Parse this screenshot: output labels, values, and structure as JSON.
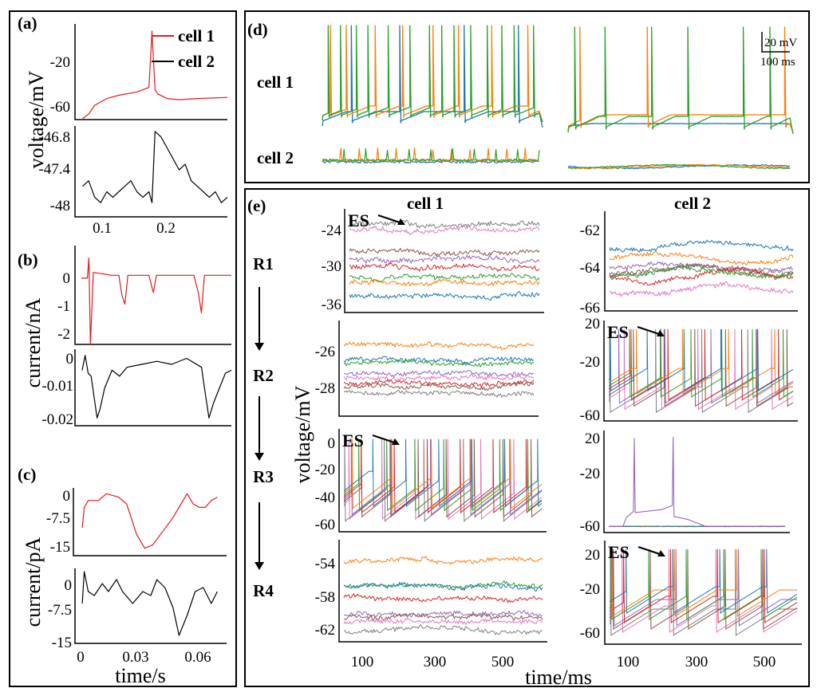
{
  "figure": {
    "panel_labels": [
      "(a)",
      "(b)",
      "(c)",
      "(d)",
      "(e)"
    ],
    "series_colors": {
      "cell1": "#e41a1c",
      "cell2": "#000000",
      "blue": "#1f77b4",
      "orange": "#ff7f0e",
      "green": "#2ca02c",
      "red": "#d62728",
      "purple": "#9467bd",
      "brown": "#8c564b",
      "pink": "#e377c2",
      "gray": "#7f7f7f"
    }
  },
  "chart_data": [
    {
      "id": "a",
      "type": "line",
      "title": "(a)",
      "ylabel": "voltage/mV",
      "xlabel": "",
      "legend": {
        "entries": [
          "cell 1",
          "cell 2"
        ],
        "placement": "top-right"
      },
      "x_ticks": [
        "0.1",
        "0.2"
      ],
      "xlim": [
        0.05,
        0.3
      ],
      "subplots": [
        {
          "name": "cell 1",
          "ylim": [
            -65,
            20
          ],
          "y_ticks": [
            "-20",
            "-60"
          ],
          "x": [
            0.06,
            0.07,
            0.08,
            0.1,
            0.12,
            0.15,
            0.17,
            0.175,
            0.18,
            0.185,
            0.2,
            0.22,
            0.25,
            0.3
          ],
          "y": [
            -64,
            -60,
            -52,
            -46,
            -43,
            -40,
            -36,
            15,
            -38,
            -42,
            -46,
            -47,
            -46,
            -45
          ]
        },
        {
          "name": "cell 2",
          "ylim": [
            -48.2,
            -46.6
          ],
          "y_ticks": [
            "-46.8",
            "-47.4",
            "-48"
          ],
          "x": [
            0.06,
            0.07,
            0.08,
            0.09,
            0.1,
            0.11,
            0.12,
            0.13,
            0.14,
            0.15,
            0.16,
            0.17,
            0.175,
            0.18,
            0.19,
            0.2,
            0.21,
            0.22,
            0.23,
            0.24,
            0.25,
            0.26,
            0.27,
            0.28,
            0.29,
            0.3
          ],
          "y": [
            -47.7,
            -47.6,
            -47.9,
            -48.0,
            -47.8,
            -47.9,
            -47.8,
            -47.7,
            -47.6,
            -47.8,
            -47.9,
            -47.8,
            -48.0,
            -46.7,
            -46.8,
            -47.0,
            -47.2,
            -47.4,
            -47.3,
            -47.6,
            -47.7,
            -47.8,
            -47.9,
            -47.8,
            -48.0,
            -47.9
          ]
        }
      ]
    },
    {
      "id": "b",
      "type": "line",
      "title": "(b)",
      "ylabel": "current/nA",
      "xlabel": "",
      "xlim": [
        0,
        1
      ],
      "subplots": [
        {
          "name": "cell 1",
          "ylim": [
            -2.3,
            0.8
          ],
          "y_ticks": [
            "0",
            "-1",
            "-2"
          ],
          "x": [
            0,
            0.04,
            0.05,
            0.06,
            0.08,
            0.2,
            0.25,
            0.27,
            0.29,
            0.31,
            0.45,
            0.48,
            0.5,
            0.52,
            0.75,
            0.78,
            0.8,
            0.82,
            1.0
          ],
          "y": [
            0,
            0,
            0.7,
            -2.3,
            0.2,
            0.1,
            0.1,
            -0.6,
            -0.9,
            0.1,
            0.1,
            -0.5,
            0.1,
            0.1,
            0.1,
            -0.5,
            -1.2,
            0.1,
            0.1
          ]
        },
        {
          "name": "cell 2",
          "ylim": [
            -0.021,
            0.002
          ],
          "y_ticks": [
            "0",
            "-0.01",
            "-0.02"
          ],
          "x": [
            0,
            0.02,
            0.04,
            0.06,
            0.1,
            0.12,
            0.15,
            0.2,
            0.25,
            0.3,
            0.4,
            0.5,
            0.6,
            0.7,
            0.8,
            0.82,
            0.85,
            0.88,
            0.92,
            0.96,
            1.0
          ],
          "y": [
            -0.004,
            0.001,
            -0.005,
            -0.006,
            -0.02,
            -0.017,
            -0.01,
            -0.004,
            -0.006,
            -0.003,
            -0.002,
            -0.001,
            -0.002,
            0.0,
            -0.003,
            -0.01,
            -0.02,
            -0.015,
            -0.01,
            -0.005,
            -0.004
          ]
        }
      ]
    },
    {
      "id": "c",
      "type": "line",
      "title": "(c)",
      "ylabel": "current/pA",
      "xlabel": "time/s",
      "x_ticks": [
        "0",
        "0.03",
        "0.06"
      ],
      "xlim": [
        -0.002,
        0.07
      ],
      "subplots": [
        {
          "name": "cell 1",
          "ylim": [
            -17,
            1
          ],
          "y_ticks": [
            "0",
            "-7.5",
            "-15"
          ],
          "x": [
            0,
            0.001,
            0.003,
            0.008,
            0.012,
            0.018,
            0.022,
            0.027,
            0.031,
            0.035,
            0.04,
            0.045,
            0.049,
            0.052,
            0.055,
            0.058,
            0.061,
            0.064,
            0.067
          ],
          "y": [
            -10,
            -4,
            -2,
            -2,
            0,
            -1,
            -3,
            -12,
            -16,
            -15,
            -11,
            -7,
            -3,
            0,
            -3,
            -4,
            -4,
            -2,
            -1
          ]
        },
        {
          "name": "cell 2",
          "ylim": [
            -15,
            3
          ],
          "y_ticks": [
            "0",
            "-7.5",
            "-15"
          ],
          "x": [
            0,
            0.001,
            0.003,
            0.006,
            0.01,
            0.013,
            0.017,
            0.02,
            0.025,
            0.03,
            0.034,
            0.037,
            0.041,
            0.045,
            0.048,
            0.052,
            0.056,
            0.06,
            0.064,
            0.067
          ],
          "y": [
            -6,
            2,
            -3,
            -4,
            -1,
            -3,
            0,
            -3,
            -6,
            -3,
            -4,
            0,
            -2,
            -7,
            -14,
            -9,
            -3,
            -2,
            -6,
            -3
          ]
        }
      ]
    },
    {
      "id": "d",
      "type": "line",
      "title": "(d)",
      "row_labels": [
        "cell 1",
        "cell 2"
      ],
      "scale_bar": {
        "vertical": "20 mV",
        "horizontal": "100 ms"
      },
      "series": [
        "blue",
        "orange",
        "green"
      ],
      "left_spike_times": {
        "blue": [
          95,
          255,
          470,
          650
        ],
        "orange": [
          25,
          78,
          175,
          265,
          365,
          450,
          560,
          680
        ],
        "green": [
          18,
          58,
          112,
          150,
          218,
          290,
          355,
          395,
          435,
          490,
          545,
          595,
          635,
          700
        ]
      },
      "right_spike_times": {
        "blue": [],
        "orange": [
          40,
          270,
          740
        ],
        "green": [
          22,
          125,
          285,
          410,
          600,
          690
        ]
      }
    },
    {
      "id": "e",
      "type": "line",
      "title": "(e)",
      "column_titles": [
        "cell 1",
        "cell 2"
      ],
      "row_labels": [
        "R1",
        "R2",
        "R3",
        "R4"
      ],
      "ylabel": "voltage/mV",
      "xlabel": "time/ms",
      "x_ticks": [
        "100",
        "300",
        "500"
      ],
      "xlim": [
        50,
        650
      ],
      "annotation": "ES",
      "subplots": [
        {
          "row": "R1",
          "col": "cell 1",
          "ylim": [
            -37,
            -19
          ],
          "y_ticks": [
            "-24",
            "-30",
            "-36"
          ],
          "es_arrow": true,
          "levels": {
            "gray": -21,
            "pink": -22,
            "brown": -26,
            "purple": -27.5,
            "red": -29,
            "green": -31,
            "orange": -32,
            "blue": -34.5
          }
        },
        {
          "row": "R1",
          "col": "cell 2",
          "ylim": [
            -66,
            -61
          ],
          "y_ticks": [
            "-62",
            "-64",
            "-66"
          ],
          "levels": {
            "blue": -62.6,
            "orange": -63.2,
            "purple": -63.8,
            "gray": -63.9,
            "brown": -64.0,
            "red": -64.3,
            "green": -64.1,
            "pink": -65.0
          }
        },
        {
          "row": "R2",
          "col": "cell 1",
          "ylim": [
            -29.5,
            -25
          ],
          "y_ticks": [
            "-26",
            "-28"
          ],
          "levels": {
            "orange": -26.0,
            "blue": -26.8,
            "green": -27.0,
            "purple": -27.5,
            "pink": -27.7,
            "red": -28.0,
            "brown": -28.2,
            "gray": -28.5
          }
        },
        {
          "row": "R2",
          "col": "cell 2",
          "ylim": [
            -65,
            25
          ],
          "y_ticks": [
            "20",
            "-20",
            "-60"
          ],
          "es_arrow": true,
          "type": "spiking",
          "rate": "high"
        },
        {
          "row": "R3",
          "col": "cell 1",
          "ylim": [
            -62,
            5
          ],
          "y_ticks": [
            "0",
            "-20",
            "-40",
            "-60"
          ],
          "es_arrow": true,
          "type": "spiking",
          "rate": "very-high"
        },
        {
          "row": "R3",
          "col": "cell 2",
          "ylim": [
            -70,
            25
          ],
          "y_ticks": [
            "20",
            "-20",
            "-60"
          ],
          "type": "two-spikes",
          "spike_times": [
            150,
            290
          ]
        },
        {
          "row": "R4",
          "col": "cell 1",
          "ylim": [
            -63.5,
            -52
          ],
          "y_ticks": [
            "-54",
            "-58",
            "-62"
          ],
          "levels": {
            "orange": -54,
            "green": -57,
            "blue": -57.2,
            "red": -58.5,
            "purple": -60.5,
            "brown": -61,
            "pink": -61.5,
            "gray": -62.5
          }
        },
        {
          "row": "R4",
          "col": "cell 2",
          "ylim": [
            -65,
            25
          ],
          "y_ticks": [
            "20",
            "-20",
            "-60"
          ],
          "es_arrow": true,
          "type": "spiking",
          "rate": "medium"
        }
      ]
    }
  ]
}
